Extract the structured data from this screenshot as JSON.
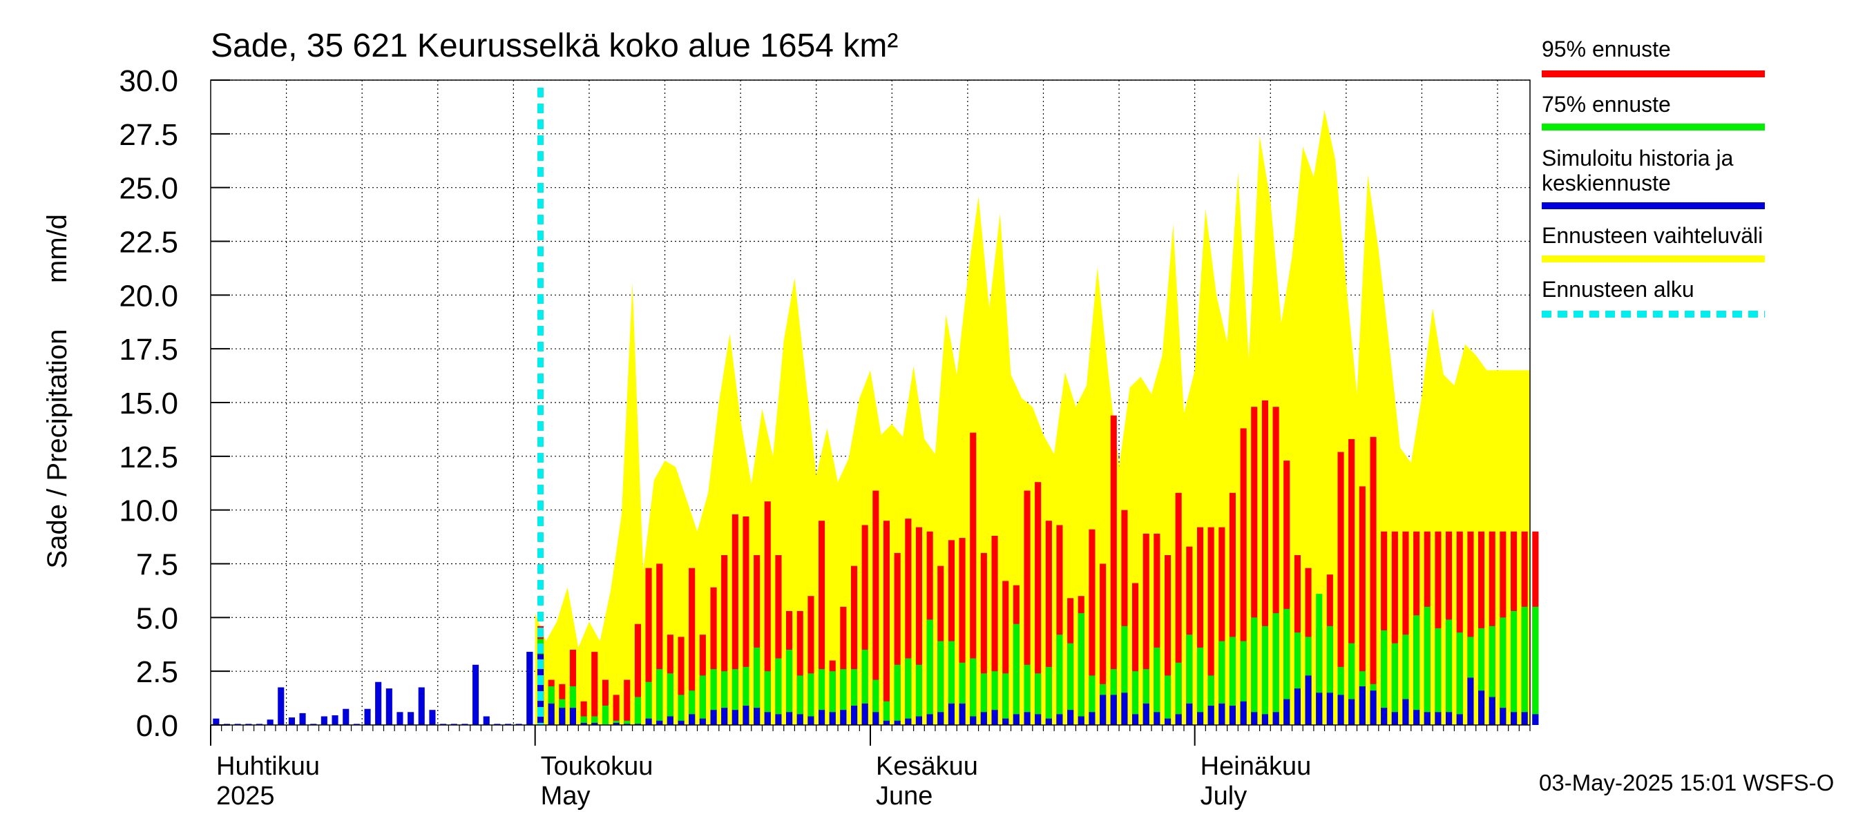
{
  "chart_data": {
    "type": "bar",
    "title": "Sade, 35 621 Keurusselkä koko alue 1654 km²",
    "ylabel_left": "Sade / Precipitation",
    "ylabel_right": "mm/d",
    "ylim": [
      0,
      30
    ],
    "y_ticks": [
      "0.0",
      "2.5",
      "5.0",
      "7.5",
      "10.0",
      "12.5",
      "15.0",
      "17.5",
      "20.0",
      "22.5",
      "25.0",
      "27.5",
      "30.0"
    ],
    "x_start_date": "2025-04-01",
    "x_days": 122,
    "forecast_start_day": 30.5,
    "months": [
      {
        "fi": "Huhtikuu",
        "en": "2025",
        "day": 0
      },
      {
        "fi": "Toukokuu",
        "en": "May",
        "day": 30
      },
      {
        "fi": "Kesäkuu",
        "en": "June",
        "day": 61
      },
      {
        "fi": "Heinäkuu",
        "en": "July",
        "day": 91
      }
    ],
    "history_days": [
      0,
      1,
      2,
      3,
      4,
      5,
      6,
      7,
      8,
      9,
      10,
      11,
      12,
      13,
      14,
      15,
      16,
      17,
      18,
      19,
      20,
      21,
      22,
      23,
      24,
      25,
      26,
      27,
      28,
      29
    ],
    "history_values": [
      0.3,
      0.05,
      0.05,
      0.05,
      0.05,
      0.25,
      1.75,
      0.35,
      0.55,
      0.05,
      0.4,
      0.45,
      0.75,
      0.05,
      0.75,
      2.0,
      1.7,
      0.6,
      0.6,
      1.75,
      0.7,
      0.05,
      0.05,
      0.05,
      2.8,
      0.4,
      0.05,
      0.05,
      0.05,
      0.05
    ],
    "forecast_days": [
      29,
      30,
      31,
      32,
      33,
      34,
      35,
      36,
      37,
      38,
      39,
      40,
      41,
      42,
      43,
      44,
      45,
      46,
      47,
      48,
      49,
      50,
      51,
      52,
      53,
      54,
      55,
      56,
      57,
      58,
      59,
      60,
      61,
      62,
      63,
      64,
      65,
      66,
      67,
      68,
      69,
      70,
      71,
      72,
      73,
      74,
      75,
      76,
      77,
      78,
      79,
      80,
      81,
      82,
      83,
      84,
      85,
      86,
      87,
      88,
      89,
      90,
      91,
      92,
      93,
      94,
      95,
      96,
      97,
      98,
      99,
      100,
      101,
      102,
      103,
      104,
      105,
      106,
      107,
      108,
      109,
      110,
      111,
      112,
      113,
      114,
      115,
      116,
      117,
      118,
      119,
      120,
      121,
      122
    ],
    "mean_values": [
      3.4,
      3.3,
      1.0,
      0.8,
      0.8,
      0.1,
      0.1,
      0.0,
      0.1,
      0.05,
      0.05,
      0.3,
      0.2,
      0.4,
      0.2,
      0.5,
      0.3,
      0.7,
      0.8,
      0.7,
      0.9,
      0.8,
      0.6,
      0.5,
      0.6,
      0.5,
      0.4,
      0.7,
      0.6,
      0.7,
      0.9,
      1.0,
      0.6,
      0.2,
      0.2,
      0.3,
      0.4,
      0.5,
      0.6,
      1.0,
      1.0,
      0.4,
      0.6,
      0.7,
      0.3,
      0.5,
      0.6,
      0.5,
      0.3,
      0.5,
      0.7,
      0.4,
      0.6,
      1.4,
      1.4,
      1.5,
      0.5,
      1.0,
      0.6,
      0.3,
      0.5,
      1.0,
      0.6,
      0.9,
      1.0,
      0.9,
      1.1,
      0.6,
      0.5,
      0.6,
      1.2,
      1.7,
      2.3,
      1.5,
      1.5,
      1.4,
      1.2,
      1.8,
      1.6,
      0.8,
      0.6,
      1.2,
      0.7,
      0.6,
      0.6,
      0.6,
      0.5,
      2.2,
      1.6,
      1.3,
      0.8,
      0.6,
      0.6,
      0.5
    ],
    "p75_values": [
      3.4,
      4.0,
      1.8,
      1.2,
      1.8,
      0.4,
      0.4,
      0.9,
      0.2,
      0.2,
      1.3,
      2.0,
      2.6,
      2.4,
      1.4,
      1.6,
      2.3,
      2.6,
      2.5,
      2.6,
      2.7,
      3.6,
      2.5,
      3.1,
      3.5,
      2.3,
      2.4,
      2.6,
      2.5,
      2.6,
      2.6,
      3.5,
      2.1,
      1.1,
      2.8,
      3.1,
      2.8,
      4.9,
      3.9,
      3.9,
      2.9,
      3.1,
      2.4,
      2.5,
      2.4,
      4.7,
      2.8,
      2.4,
      2.7,
      4.2,
      3.8,
      5.2,
      2.3,
      1.9,
      2.6,
      4.6,
      2.5,
      2.6,
      3.6,
      2.3,
      2.9,
      4.2,
      3.6,
      2.3,
      3.9,
      4.1,
      3.9,
      5.0,
      4.6,
      5.2,
      5.4,
      4.3,
      4.1,
      6.1,
      4.6,
      2.7,
      3.8,
      2.5,
      1.9,
      4.4,
      3.8,
      4.2,
      5.1,
      5.5,
      4.5,
      4.9,
      4.3,
      4.1,
      4.5,
      4.6,
      5.0,
      5.3,
      5.5,
      5.5
    ],
    "p95_values": [
      3.4,
      4.6,
      2.1,
      1.9,
      3.5,
      1.1,
      3.4,
      2.1,
      1.4,
      2.1,
      4.7,
      7.3,
      7.5,
      4.2,
      4.1,
      7.3,
      4.2,
      6.4,
      7.9,
      9.8,
      9.7,
      7.9,
      10.4,
      7.9,
      5.3,
      5.3,
      6.0,
      9.5,
      3.0,
      5.5,
      7.4,
      9.3,
      10.9,
      9.5,
      8.0,
      9.6,
      9.2,
      9.0,
      7.4,
      8.6,
      8.7,
      13.6,
      8.0,
      8.8,
      6.7,
      6.5,
      10.9,
      11.3,
      9.5,
      9.3,
      5.9,
      6.0,
      9.1,
      7.5,
      14.4,
      10.0,
      6.6,
      8.9,
      8.9,
      7.9,
      10.8,
      8.3,
      9.2,
      9.2,
      9.2,
      10.8,
      13.8,
      14.8,
      15.1,
      14.8,
      12.3,
      7.9,
      7.3,
      4.5,
      7.0,
      12.7,
      13.3,
      11.1,
      13.4,
      9.0,
      9.0,
      9.0,
      9.0,
      9.0,
      9.0,
      9.0,
      9.0,
      9.0,
      9.0,
      9.0,
      9.0,
      9.0,
      9.0,
      9.0
    ],
    "range_days": [
      30,
      31,
      32,
      33,
      34,
      35,
      36,
      37,
      38,
      39,
      40,
      41,
      42,
      43,
      44,
      45,
      46,
      47,
      48,
      49,
      50,
      51,
      52,
      53,
      54,
      55,
      56,
      57,
      58,
      59,
      60,
      61,
      62,
      63,
      64,
      65,
      66,
      67,
      68,
      69,
      70,
      71,
      72,
      73,
      74,
      75,
      76,
      77,
      78,
      79,
      80,
      81,
      82,
      83,
      84,
      85,
      86,
      87,
      88,
      89,
      90,
      91,
      92,
      93,
      94,
      95,
      96,
      97,
      98,
      99,
      100,
      101,
      102,
      103,
      104,
      105,
      106,
      107,
      108,
      109,
      110,
      111,
      112,
      113,
      114,
      115,
      116,
      117,
      118,
      119,
      120,
      121,
      122
    ],
    "range_upper": [
      5.2,
      3.9,
      4.8,
      6.4,
      3.6,
      4.8,
      3.9,
      6.3,
      9.8,
      20.6,
      7.2,
      11.4,
      12.3,
      12.0,
      10.5,
      9.0,
      10.8,
      15.0,
      18.2,
      14.2,
      11.2,
      14.7,
      12.5,
      17.9,
      20.8,
      16.2,
      11.6,
      13.8,
      11.3,
      12.4,
      15.2,
      16.5,
      13.5,
      14.0,
      13.4,
      16.7,
      13.3,
      12.6,
      19.1,
      16.3,
      20.8,
      24.6,
      19.4,
      23.8,
      16.3,
      15.2,
      14.8,
      13.5,
      12.6,
      16.4,
      14.8,
      15.8,
      21.3,
      16.4,
      12.0,
      15.7,
      16.2,
      15.4,
      17.2,
      23.3,
      14.5,
      16.5,
      24.0,
      20.0,
      17.8,
      25.7,
      17.0,
      27.4,
      24.4,
      18.7,
      21.8,
      26.9,
      25.5,
      28.6,
      26.3,
      20.5,
      15.4,
      25.6,
      22.1,
      17.6,
      12.9,
      12.2,
      15.3,
      19.4,
      16.3,
      15.8,
      17.7,
      17.2,
      16.5,
      16.5,
      16.5,
      16.5,
      16.5
    ],
    "legend": [
      {
        "label": "95% ennuste",
        "color": "#ff0000"
      },
      {
        "label": "75% ennuste",
        "color": "#00ee00"
      },
      {
        "label": "Simuloitu historia ja keskiennuste",
        "color": "#0000dd"
      },
      {
        "label": "Ennusteen vaihteluväli",
        "color": "#ffff00"
      },
      {
        "label": "Ennusteen alku",
        "color": "#00eeee"
      }
    ],
    "footer": "03-May-2025 15:01 WSFS-O"
  }
}
